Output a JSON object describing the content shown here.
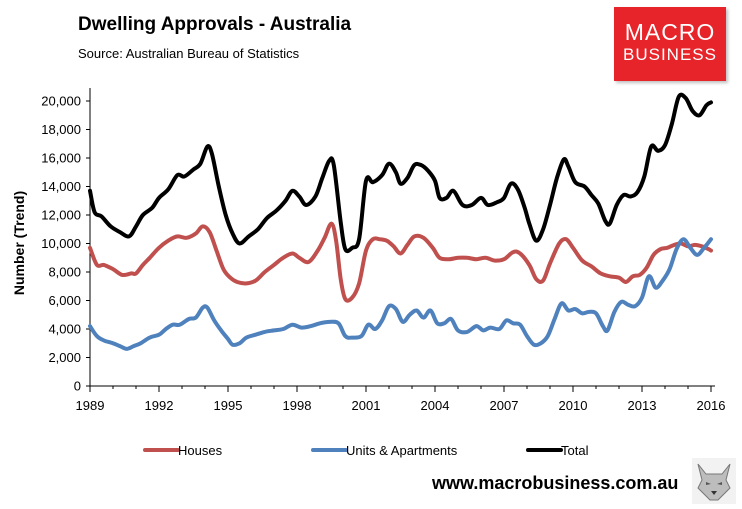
{
  "header": {
    "title": "Dwelling Approvals - Australia",
    "source": "Source:  Australian Bureau of Statistics"
  },
  "logo": {
    "line1": "MACRO",
    "line2": "BUSINESS",
    "color": "#e8242b"
  },
  "footer": {
    "url": "www.macrobusiness.com.au"
  },
  "chart_data": {
    "type": "line",
    "title": "Dwelling Approvals - Australia",
    "xlabel": "",
    "ylabel": "Number (Trend)",
    "xlim": [
      1989,
      2016
    ],
    "ylim": [
      0,
      20000
    ],
    "x_ticks": [
      "1989",
      "1992",
      "1995",
      "1998",
      "2001",
      "2004",
      "2007",
      "2010",
      "2013",
      "2016"
    ],
    "y_ticks": [
      "0",
      "2,000",
      "4,000",
      "6,000",
      "8,000",
      "10,000",
      "12,000",
      "14,000",
      "16,000",
      "18,000",
      "20,000"
    ],
    "grid": false,
    "legend_position": "bottom",
    "series": [
      {
        "name": "Houses",
        "color": "#c0504d",
        "points": [
          [
            1989.0,
            9700
          ],
          [
            1989.3,
            8500
          ],
          [
            1989.6,
            8500
          ],
          [
            1990.0,
            8200
          ],
          [
            1990.4,
            7800
          ],
          [
            1990.8,
            7900
          ],
          [
            1991.0,
            7900
          ],
          [
            1991.3,
            8500
          ],
          [
            1991.6,
            9000
          ],
          [
            1992.0,
            9700
          ],
          [
            1992.4,
            10200
          ],
          [
            1992.8,
            10500
          ],
          [
            1993.2,
            10400
          ],
          [
            1993.6,
            10700
          ],
          [
            1993.9,
            11200
          ],
          [
            1994.2,
            10800
          ],
          [
            1994.5,
            9500
          ],
          [
            1994.8,
            8200
          ],
          [
            1995.1,
            7600
          ],
          [
            1995.4,
            7300
          ],
          [
            1995.8,
            7200
          ],
          [
            1996.2,
            7400
          ],
          [
            1996.6,
            8000
          ],
          [
            1997.0,
            8500
          ],
          [
            1997.4,
            9000
          ],
          [
            1997.8,
            9300
          ],
          [
            1998.1,
            9000
          ],
          [
            1998.5,
            8700
          ],
          [
            1998.9,
            9500
          ],
          [
            1999.2,
            10400
          ],
          [
            1999.5,
            11400
          ],
          [
            1999.7,
            10200
          ],
          [
            1999.9,
            7500
          ],
          [
            2000.1,
            6100
          ],
          [
            2000.4,
            6200
          ],
          [
            2000.7,
            7200
          ],
          [
            2001.0,
            9500
          ],
          [
            2001.3,
            10300
          ],
          [
            2001.6,
            10300
          ],
          [
            2001.9,
            10200
          ],
          [
            2002.2,
            9800
          ],
          [
            2002.5,
            9300
          ],
          [
            2002.8,
            9900
          ],
          [
            2003.1,
            10500
          ],
          [
            2003.5,
            10400
          ],
          [
            2003.9,
            9700
          ],
          [
            2004.2,
            9000
          ],
          [
            2004.6,
            8900
          ],
          [
            2005.0,
            9000
          ],
          [
            2005.4,
            9000
          ],
          [
            2005.8,
            8900
          ],
          [
            2006.2,
            9000
          ],
          [
            2006.6,
            8800
          ],
          [
            2007.0,
            8900
          ],
          [
            2007.4,
            9400
          ],
          [
            2007.7,
            9300
          ],
          [
            2008.1,
            8500
          ],
          [
            2008.4,
            7500
          ],
          [
            2008.7,
            7400
          ],
          [
            2009.0,
            8600
          ],
          [
            2009.4,
            10000
          ],
          [
            2009.7,
            10300
          ],
          [
            2010.0,
            9700
          ],
          [
            2010.4,
            8800
          ],
          [
            2010.8,
            8400
          ],
          [
            2011.2,
            7900
          ],
          [
            2011.6,
            7700
          ],
          [
            2012.0,
            7600
          ],
          [
            2012.3,
            7300
          ],
          [
            2012.6,
            7700
          ],
          [
            2012.9,
            7800
          ],
          [
            2013.2,
            8300
          ],
          [
            2013.5,
            9200
          ],
          [
            2013.8,
            9600
          ],
          [
            2014.1,
            9700
          ],
          [
            2014.4,
            9900
          ],
          [
            2014.7,
            10000
          ],
          [
            2015.0,
            9800
          ],
          [
            2015.3,
            9900
          ],
          [
            2015.6,
            9800
          ],
          [
            2015.9,
            9600
          ],
          [
            2016.0,
            9500
          ]
        ]
      },
      {
        "name": "Units & Apartments",
        "color": "#4f81bd",
        "points": [
          [
            1989.0,
            4200
          ],
          [
            1989.3,
            3500
          ],
          [
            1989.6,
            3200
          ],
          [
            1990.0,
            3000
          ],
          [
            1990.3,
            2800
          ],
          [
            1990.6,
            2600
          ],
          [
            1990.9,
            2800
          ],
          [
            1991.2,
            3000
          ],
          [
            1991.6,
            3400
          ],
          [
            1992.0,
            3600
          ],
          [
            1992.3,
            4000
          ],
          [
            1992.6,
            4300
          ],
          [
            1992.9,
            4300
          ],
          [
            1993.3,
            4700
          ],
          [
            1993.6,
            4800
          ],
          [
            1993.9,
            5500
          ],
          [
            1994.1,
            5500
          ],
          [
            1994.4,
            4600
          ],
          [
            1994.7,
            3900
          ],
          [
            1995.0,
            3300
          ],
          [
            1995.2,
            2900
          ],
          [
            1995.5,
            3000
          ],
          [
            1995.8,
            3400
          ],
          [
            1996.2,
            3600
          ],
          [
            1996.6,
            3800
          ],
          [
            1997.0,
            3900
          ],
          [
            1997.4,
            4000
          ],
          [
            1997.8,
            4300
          ],
          [
            1998.2,
            4100
          ],
          [
            1998.6,
            4200
          ],
          [
            1999.0,
            4400
          ],
          [
            1999.4,
            4500
          ],
          [
            1999.8,
            4400
          ],
          [
            2000.1,
            3500
          ],
          [
            2000.4,
            3400
          ],
          [
            2000.8,
            3500
          ],
          [
            2001.1,
            4300
          ],
          [
            2001.4,
            4000
          ],
          [
            2001.7,
            4600
          ],
          [
            2002.0,
            5600
          ],
          [
            2002.3,
            5400
          ],
          [
            2002.6,
            4500
          ],
          [
            2002.9,
            5000
          ],
          [
            2003.2,
            5300
          ],
          [
            2003.5,
            4800
          ],
          [
            2003.8,
            5300
          ],
          [
            2004.1,
            4400
          ],
          [
            2004.4,
            4400
          ],
          [
            2004.7,
            4700
          ],
          [
            2005.0,
            3900
          ],
          [
            2005.4,
            3800
          ],
          [
            2005.8,
            4200
          ],
          [
            2006.1,
            3900
          ],
          [
            2006.4,
            4100
          ],
          [
            2006.8,
            4000
          ],
          [
            2007.1,
            4600
          ],
          [
            2007.4,
            4400
          ],
          [
            2007.7,
            4300
          ],
          [
            2008.0,
            3500
          ],
          [
            2008.3,
            2900
          ],
          [
            2008.6,
            3000
          ],
          [
            2008.9,
            3500
          ],
          [
            2009.2,
            4700
          ],
          [
            2009.5,
            5800
          ],
          [
            2009.8,
            5300
          ],
          [
            2010.1,
            5400
          ],
          [
            2010.4,
            5100
          ],
          [
            2010.7,
            5200
          ],
          [
            2011.0,
            5100
          ],
          [
            2011.3,
            4200
          ],
          [
            2011.5,
            3900
          ],
          [
            2011.8,
            5200
          ],
          [
            2012.1,
            5900
          ],
          [
            2012.4,
            5700
          ],
          [
            2012.7,
            5600
          ],
          [
            2013.0,
            6200
          ],
          [
            2013.3,
            7700
          ],
          [
            2013.6,
            6900
          ],
          [
            2013.9,
            7400
          ],
          [
            2014.2,
            8200
          ],
          [
            2014.5,
            9600
          ],
          [
            2014.8,
            10300
          ],
          [
            2015.1,
            9700
          ],
          [
            2015.4,
            9200
          ],
          [
            2015.7,
            9700
          ],
          [
            2016.0,
            10300
          ]
        ]
      },
      {
        "name": "Total",
        "color": "#000000",
        "points": [
          [
            1989.0,
            13700
          ],
          [
            1989.2,
            12200
          ],
          [
            1989.5,
            11900
          ],
          [
            1989.9,
            11200
          ],
          [
            1990.3,
            10800
          ],
          [
            1990.7,
            10500
          ],
          [
            1991.0,
            11200
          ],
          [
            1991.3,
            12000
          ],
          [
            1991.7,
            12500
          ],
          [
            1992.0,
            13200
          ],
          [
            1992.4,
            13800
          ],
          [
            1992.8,
            14800
          ],
          [
            1993.1,
            14700
          ],
          [
            1993.5,
            15200
          ],
          [
            1993.8,
            15600
          ],
          [
            1994.1,
            16800
          ],
          [
            1994.3,
            16300
          ],
          [
            1994.6,
            14000
          ],
          [
            1994.9,
            12000
          ],
          [
            1995.2,
            10700
          ],
          [
            1995.5,
            10000
          ],
          [
            1995.9,
            10500
          ],
          [
            1996.3,
            11000
          ],
          [
            1996.7,
            11800
          ],
          [
            1997.1,
            12300
          ],
          [
            1997.5,
            13000
          ],
          [
            1997.8,
            13700
          ],
          [
            1998.1,
            13300
          ],
          [
            1998.4,
            12700
          ],
          [
            1998.8,
            13300
          ],
          [
            1999.1,
            14600
          ],
          [
            1999.4,
            15800
          ],
          [
            1999.6,
            15500
          ],
          [
            1999.9,
            11500
          ],
          [
            2000.1,
            9600
          ],
          [
            2000.4,
            9700
          ],
          [
            2000.7,
            10300
          ],
          [
            2001.0,
            14400
          ],
          [
            2001.3,
            14300
          ],
          [
            2001.7,
            14800
          ],
          [
            2002.0,
            15600
          ],
          [
            2002.3,
            15000
          ],
          [
            2002.5,
            14200
          ],
          [
            2002.8,
            14600
          ],
          [
            2003.1,
            15500
          ],
          [
            2003.4,
            15500
          ],
          [
            2003.7,
            15100
          ],
          [
            2004.0,
            14400
          ],
          [
            2004.2,
            13200
          ],
          [
            2004.5,
            13200
          ],
          [
            2004.8,
            13700
          ],
          [
            2005.2,
            12700
          ],
          [
            2005.6,
            12700
          ],
          [
            2006.0,
            13200
          ],
          [
            2006.3,
            12700
          ],
          [
            2006.7,
            12900
          ],
          [
            2007.0,
            13200
          ],
          [
            2007.3,
            14200
          ],
          [
            2007.6,
            13800
          ],
          [
            2007.9,
            12500
          ],
          [
            2008.1,
            11400
          ],
          [
            2008.4,
            10200
          ],
          [
            2008.7,
            11000
          ],
          [
            2009.0,
            12700
          ],
          [
            2009.3,
            14600
          ],
          [
            2009.6,
            15900
          ],
          [
            2009.8,
            15400
          ],
          [
            2010.1,
            14300
          ],
          [
            2010.5,
            14000
          ],
          [
            2010.8,
            13400
          ],
          [
            2011.1,
            12800
          ],
          [
            2011.4,
            11600
          ],
          [
            2011.6,
            11400
          ],
          [
            2011.9,
            12700
          ],
          [
            2012.2,
            13400
          ],
          [
            2012.5,
            13300
          ],
          [
            2012.8,
            13600
          ],
          [
            2013.1,
            14700
          ],
          [
            2013.4,
            16800
          ],
          [
            2013.7,
            16500
          ],
          [
            2014.0,
            16900
          ],
          [
            2014.3,
            18400
          ],
          [
            2014.6,
            20300
          ],
          [
            2014.9,
            20200
          ],
          [
            2015.2,
            19300
          ],
          [
            2015.5,
            19000
          ],
          [
            2015.8,
            19700
          ],
          [
            2016.0,
            19900
          ]
        ]
      }
    ]
  }
}
